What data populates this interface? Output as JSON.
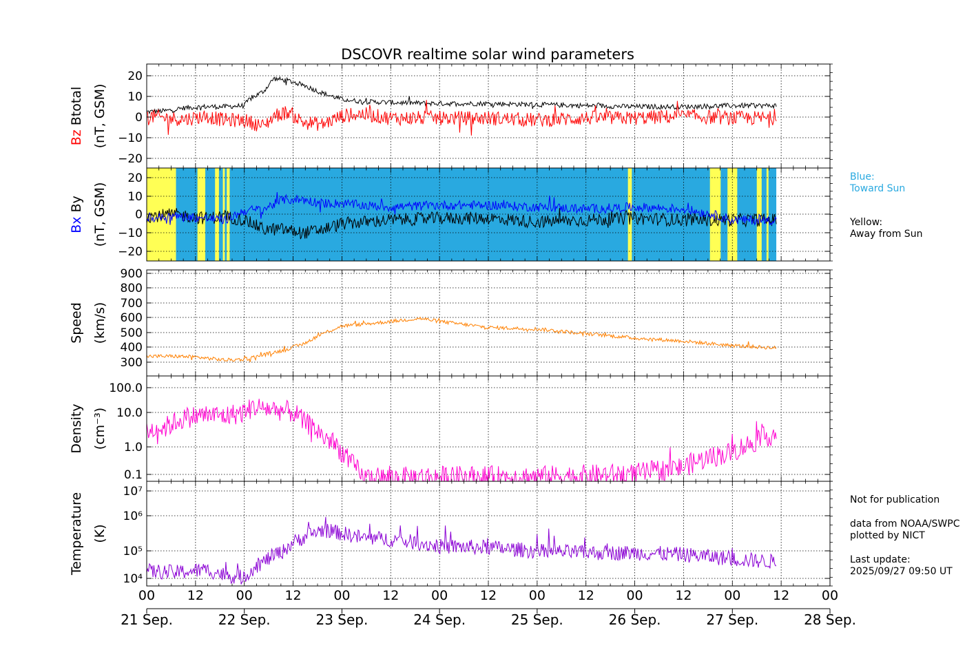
{
  "title": "DSCOVR realtime solar wind parameters",
  "colors": {
    "black": "#000000",
    "red": "#ff0000",
    "blue": "#0000ff",
    "toward": "#29a9e0",
    "away": "#ffff55",
    "speed": "#ff8000",
    "density": "#ff00d0",
    "temperature": "#8a00d4"
  },
  "legend": {
    "toward_1": "Blue:",
    "toward_2": "Toward Sun",
    "away_1": "Yellow:",
    "away_2": "Away from Sun"
  },
  "notes": {
    "line1": "Not for publication",
    "line2": "data from NOAA/SWPC",
    "line3": "plotted by NICT",
    "line4": "Last update:",
    "line5": "2025/09/27 09:50 UT"
  },
  "chart_data": {
    "type": "line",
    "x_range_days": [
      0,
      7
    ],
    "data_end_day": 6.45,
    "x_hour_ticks": [
      "00",
      "12",
      "00",
      "12",
      "00",
      "12",
      "00",
      "12",
      "00",
      "12",
      "00",
      "12",
      "00",
      "12",
      "00"
    ],
    "x_date_labels": [
      "21 Sep.",
      "22 Sep.",
      "23 Sep.",
      "24 Sep.",
      "25 Sep.",
      "26 Sep.",
      "27 Sep.",
      "28 Sep."
    ],
    "panels": [
      {
        "id": "bfield",
        "ylabel_main": "Btotal",
        "ylabel_colored": "Bz",
        "ylabel_units": "(nT, GSM)",
        "ylim": [
          -25,
          25
        ],
        "yticks": [
          "20",
          "10",
          "0",
          "−10",
          "−20"
        ],
        "series": [
          {
            "name": "Btotal",
            "x": [
              0,
              0.2,
              0.4,
              0.6,
              0.8,
              1.0,
              1.05,
              1.2,
              1.3,
              1.45,
              1.6,
              1.8,
              2.0,
              2.2,
              2.5,
              3.0,
              3.5,
              4.0,
              4.5,
              5.0,
              5.5,
              6.0,
              6.45
            ],
            "y": [
              2,
              2.5,
              4,
              4.5,
              4.5,
              5,
              8,
              12,
              18,
              17,
              15,
              11,
              8,
              7,
              6.5,
              6,
              6,
              5.5,
              5,
              4.5,
              4.5,
              5,
              5
            ]
          },
          {
            "name": "Bz",
            "x": [
              0,
              0.2,
              0.4,
              0.6,
              0.8,
              1.0,
              1.2,
              1.3,
              1.45,
              1.6,
              1.8,
              2.0,
              2.2,
              2.5,
              3.0,
              3.5,
              4.0,
              4.5,
              5.0,
              5.5,
              6.0,
              6.45
            ],
            "y": [
              0,
              -1,
              -1.5,
              0,
              -2,
              -2,
              -5,
              0,
              2,
              -3,
              -4,
              0,
              1,
              -1,
              -1,
              -1,
              -2,
              -1,
              -1,
              0,
              -1,
              -1
            ]
          }
        ]
      },
      {
        "id": "bxy",
        "ylabel_main": "By",
        "ylabel_colored": "Bx",
        "ylabel_units": "(nT, GSM)",
        "ylim": [
          -25,
          25
        ],
        "yticks": [
          "20",
          "10",
          "0",
          "−10",
          "−20"
        ],
        "sector_away": [
          [
            0,
            0.3
          ],
          [
            0.52,
            0.6
          ],
          [
            0.7,
            0.74
          ],
          [
            0.78,
            0.8
          ],
          [
            0.82,
            0.85
          ],
          [
            4.93,
            4.97
          ],
          [
            5.77,
            5.88
          ],
          [
            5.95,
            6.05
          ],
          [
            6.25,
            6.3
          ],
          [
            6.35,
            6.37
          ]
        ],
        "series": [
          {
            "name": "By",
            "x": [
              0,
              0.3,
              0.6,
              0.8,
              1.0,
              1.2,
              1.4,
              1.6,
              1.8,
              2.0,
              2.5,
              3.0,
              3.5,
              4.0,
              4.5,
              5.0,
              5.5,
              6.0,
              6.45
            ],
            "y": [
              -1,
              0,
              -2,
              -1,
              -3,
              -8,
              -8,
              -10,
              -8,
              -5,
              -3,
              -2,
              -2,
              -4,
              -3,
              -2,
              -3,
              -3,
              -3
            ]
          },
          {
            "name": "Bx",
            "x": [
              0,
              0.3,
              0.6,
              0.8,
              1.0,
              1.2,
              1.4,
              1.6,
              1.8,
              2.0,
              2.2,
              2.5,
              3.0,
              3.5,
              4.0,
              4.5,
              5.0,
              5.5,
              5.8,
              6.0,
              6.45
            ],
            "y": [
              -2,
              -1,
              -2,
              -3,
              2,
              3,
              8,
              8,
              6,
              6,
              5,
              4,
              5,
              5,
              4,
              3,
              4,
              3,
              0,
              -3,
              -3
            ]
          }
        ]
      },
      {
        "id": "speed",
        "ylabel_main": "Speed",
        "ylabel_units": "(km/s)",
        "ylim": [
          200,
          900
        ],
        "yticks": [
          "900",
          "800",
          "700",
          "600",
          "500",
          "400",
          "300"
        ],
        "series": [
          {
            "name": "Speed",
            "x": [
              0,
              0.3,
              0.5,
              0.8,
              1.0,
              1.2,
              1.4,
              1.6,
              1.8,
              2.0,
              2.2,
              2.5,
              2.8,
              3.0,
              3.5,
              4.0,
              4.5,
              5.0,
              5.5,
              6.0,
              6.45
            ],
            "y": [
              330,
              330,
              325,
              305,
              310,
              340,
              370,
              410,
              480,
              530,
              540,
              560,
              580,
              560,
              520,
              510,
              480,
              450,
              430,
              400,
              385
            ]
          }
        ]
      },
      {
        "id": "density",
        "ylabel_main": "Density",
        "ylabel_units": "(cm⁻³)",
        "ylog": true,
        "ylim": [
          0.07,
          180
        ],
        "yticks": [
          "100.0",
          "10.0",
          "1.0",
          "0.1"
        ],
        "series": [
          {
            "name": "Density",
            "x": [
              0,
              0.2,
              0.4,
              0.6,
              0.8,
              1.0,
              1.1,
              1.3,
              1.5,
              1.6,
              1.8,
              2.0,
              2.1,
              2.2,
              2.4,
              3.0,
              4.0,
              5.0,
              5.5,
              6.0,
              6.2,
              6.45
            ],
            "y": [
              3,
              4,
              8,
              10,
              9,
              12,
              18,
              15,
              12,
              6,
              2,
              0.6,
              0.25,
              0.1,
              0.09,
              0.1,
              0.1,
              0.12,
              0.2,
              0.6,
              1.2,
              2.5
            ]
          }
        ]
      },
      {
        "id": "temperature",
        "ylabel_main": "Temperature",
        "ylabel_units": "(K)",
        "ylog": true,
        "ylim": [
          6500,
          18000000
        ],
        "yticks": [
          "10⁷",
          "10⁶",
          "10⁵",
          "10⁴"
        ],
        "series": [
          {
            "name": "Temperature",
            "x": [
              0,
              0.3,
              0.6,
              0.8,
              1.0,
              1.2,
              1.4,
              1.6,
              1.8,
              2.0,
              2.2,
              2.5,
              3.0,
              3.5,
              4.0,
              4.5,
              5.0,
              5.5,
              6.0,
              6.45
            ],
            "y": [
              20000,
              18000,
              22000,
              15000,
              12000,
              40000,
              90000,
              250000,
              450000,
              350000,
              250000,
              220000,
              130000,
              120000,
              90000,
              80000,
              80000,
              70000,
              50000,
              40000
            ]
          }
        ]
      }
    ]
  }
}
